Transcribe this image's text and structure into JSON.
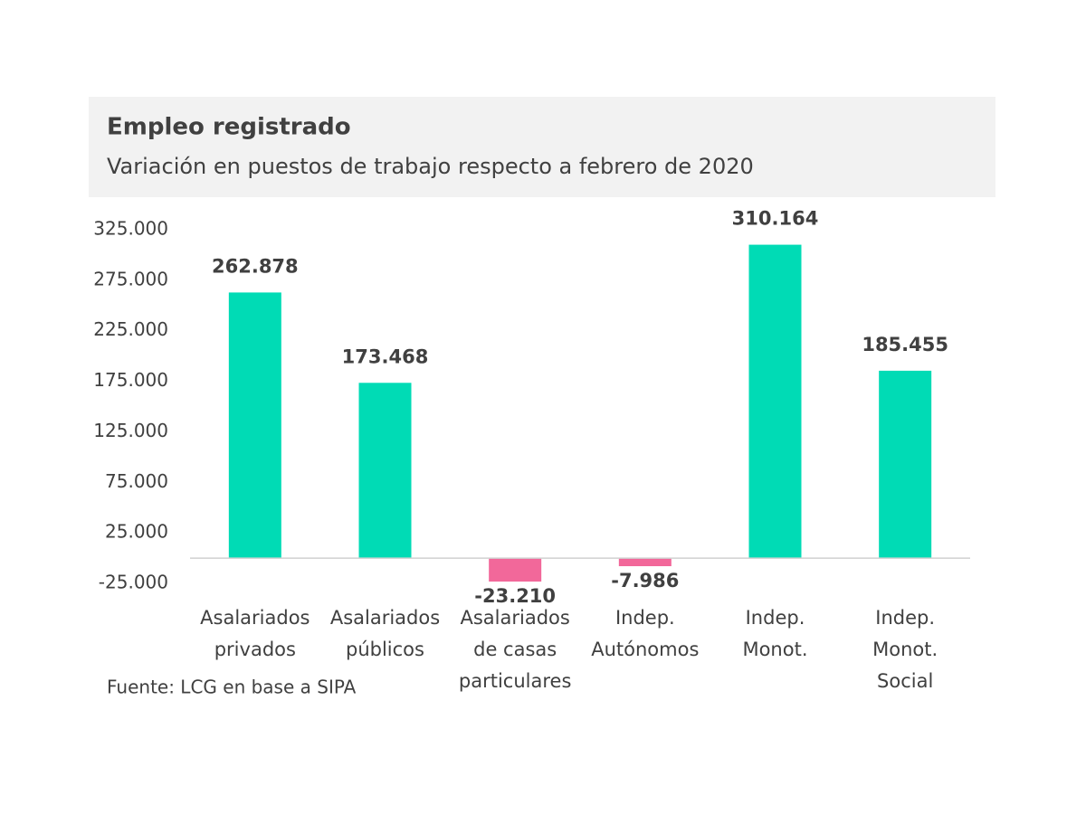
{
  "chart_data": {
    "type": "bar",
    "title": "Empleo registrado",
    "subtitle": "Variación en puestos de trabajo respecto a febrero de 2020",
    "source": "Fuente: LCG en base a SIPA",
    "categories": [
      "Asalariados\nprivados",
      "Asalariados\npúblicos",
      "Asalariados\nde casas\nparticulares",
      "Indep.\nAutónomos",
      "Indep.\nMonot.",
      "Indep.\nMonot.\nSocial"
    ],
    "values": [
      262878,
      173468,
      -23210,
      -7986,
      310164,
      185455
    ],
    "value_labels": [
      "262.878",
      "173.468",
      "-23.210",
      "-7.986",
      "310.164",
      "185.455"
    ],
    "colors": [
      "#00dbb5",
      "#00dbb5",
      "#f2689a",
      "#f2689a",
      "#00dbb5",
      "#00dbb5"
    ],
    "ylim": [
      -25000,
      325000
    ],
    "yticks": [
      {
        "value": 325000,
        "label": "325.000"
      },
      {
        "value": 275000,
        "label": "275.000"
      },
      {
        "value": 225000,
        "label": "225.000"
      },
      {
        "value": 175000,
        "label": "175.000"
      },
      {
        "value": 125000,
        "label": "125.000"
      },
      {
        "value": 75000,
        "label": "75.000"
      },
      {
        "value": 25000,
        "label": "25.000"
      },
      {
        "value": -25000,
        "label": "-25.000"
      }
    ],
    "grid": false
  }
}
